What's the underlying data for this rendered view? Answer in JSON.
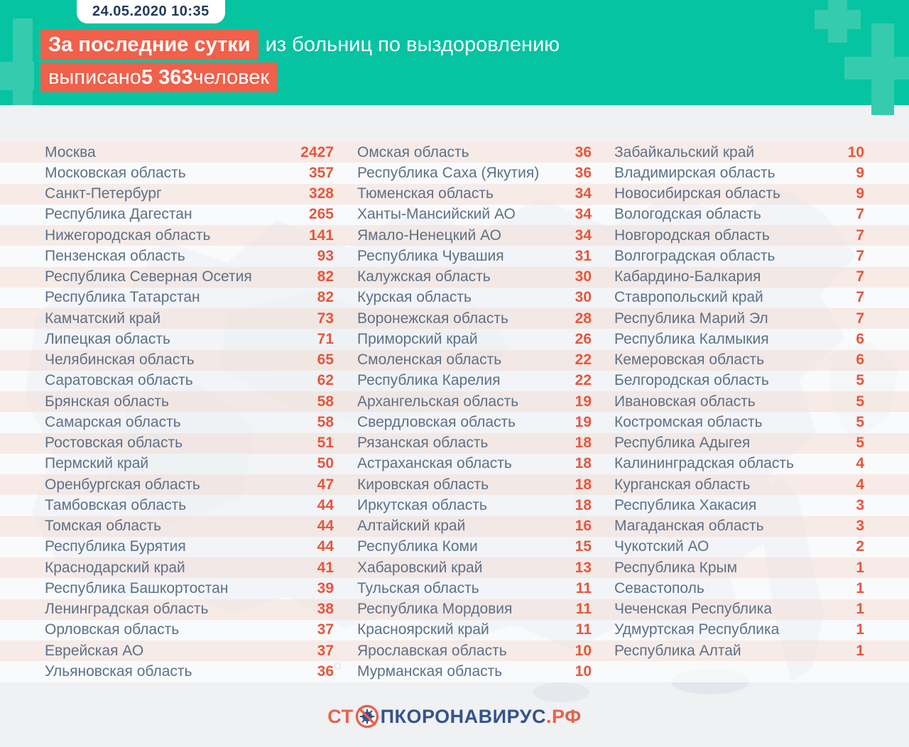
{
  "badge": {
    "timestamp": "24.05.2020 10:35"
  },
  "headline": {
    "line1_highlight": "За последние сутки",
    "line1_rest": "из больниц по выздоровлению",
    "line2_pre": "выписано ",
    "line2_number": "5 363",
    "line2_post": " человек"
  },
  "logo": {
    "part1": "СТ",
    "part2": "ПКОРОНАВИРУС",
    "part3": ".РФ"
  },
  "colors": {
    "teal_band": "#06c3a2",
    "teal_cross": "#35cbae",
    "highlight_orange": "#f1604a",
    "value_orange": "#e5573d",
    "region_gray_blue": "#5d7187",
    "badge_navy": "#24395c",
    "logo_blue": "#35528c",
    "logo_orange": "#e8614b",
    "page_background": "#eff1f3",
    "map_silhouette": "#dbe1e9"
  },
  "chart_data": {
    "type": "table",
    "title": "За последние сутки из больниц по выздоровлению выписано 5 363 человек",
    "timestamp": "24.05.2020 10:35",
    "total_discharged": 5363,
    "columns_meta": [
      "region",
      "discharged_per_day"
    ],
    "row_count": 26,
    "columns": [
      {
        "rows": [
          {
            "region": "Москва",
            "value": 2427
          },
          {
            "region": "Московская область",
            "value": 357
          },
          {
            "region": "Санкт-Петербург",
            "value": 328
          },
          {
            "region": "Республика Дагестан",
            "value": 265
          },
          {
            "region": "Нижегородская область",
            "value": 141
          },
          {
            "region": "Пензенская область",
            "value": 93
          },
          {
            "region": "Республика Северная Осетия",
            "value": 82
          },
          {
            "region": "Республика Татарстан",
            "value": 82
          },
          {
            "region": "Камчатский край",
            "value": 73
          },
          {
            "region": "Липецкая область",
            "value": 71
          },
          {
            "region": "Челябинская область",
            "value": 65
          },
          {
            "region": "Саратовская область",
            "value": 62
          },
          {
            "region": "Брянская область",
            "value": 58
          },
          {
            "region": "Самарская область",
            "value": 58
          },
          {
            "region": "Ростовская область",
            "value": 51
          },
          {
            "region": "Пермский край",
            "value": 50
          },
          {
            "region": "Оренбургская область",
            "value": 47
          },
          {
            "region": "Тамбовская область",
            "value": 44
          },
          {
            "region": "Томская область",
            "value": 44
          },
          {
            "region": "Республика Бурятия",
            "value": 44
          },
          {
            "region": "Краснодарский край",
            "value": 41
          },
          {
            "region": "Республика Башкортостан",
            "value": 39
          },
          {
            "region": "Ленинградская область",
            "value": 38
          },
          {
            "region": "Орловская область",
            "value": 37
          },
          {
            "region": "Еврейская АО",
            "value": 37
          },
          {
            "region": "Ульяновская область",
            "value": 36
          }
        ]
      },
      {
        "rows": [
          {
            "region": "Омская область",
            "value": 36
          },
          {
            "region": "Республика Саха (Якутия)",
            "value": 36
          },
          {
            "region": "Тюменская область",
            "value": 34
          },
          {
            "region": "Ханты-Мансийский АО",
            "value": 34
          },
          {
            "region": "Ямало-Ненецкий АО",
            "value": 34
          },
          {
            "region": "Республика Чувашия",
            "value": 31
          },
          {
            "region": "Калужская область",
            "value": 30
          },
          {
            "region": "Курская область",
            "value": 30
          },
          {
            "region": "Воронежская область",
            "value": 28
          },
          {
            "region": "Приморский край",
            "value": 26
          },
          {
            "region": "Смоленская область",
            "value": 22
          },
          {
            "region": "Республика Карелия",
            "value": 22
          },
          {
            "region": "Архангельская область",
            "value": 19
          },
          {
            "region": "Свердловская область",
            "value": 19
          },
          {
            "region": "Рязанская область",
            "value": 18
          },
          {
            "region": "Астраханская область",
            "value": 18
          },
          {
            "region": "Кировская область",
            "value": 18
          },
          {
            "region": "Иркутская область",
            "value": 18
          },
          {
            "region": "Алтайский край",
            "value": 16
          },
          {
            "region": "Республика Коми",
            "value": 15
          },
          {
            "region": "Хабаровский край",
            "value": 13
          },
          {
            "region": "Тульская область",
            "value": 11
          },
          {
            "region": "Республика Мордовия",
            "value": 11
          },
          {
            "region": "Красноярский край",
            "value": 11
          },
          {
            "region": "Ярославская область",
            "value": 10
          },
          {
            "region": "Мурманская область",
            "value": 10
          }
        ]
      },
      {
        "rows": [
          {
            "region": "Забайкальский край",
            "value": 10
          },
          {
            "region": "Владимирская область",
            "value": 9
          },
          {
            "region": "Новосибирская область",
            "value": 9
          },
          {
            "region": "Вологодская область",
            "value": 7
          },
          {
            "region": "Новгородская область",
            "value": 7
          },
          {
            "region": "Волгоградская область",
            "value": 7
          },
          {
            "region": "Кабардино-Балкария",
            "value": 7
          },
          {
            "region": "Ставропольский край",
            "value": 7
          },
          {
            "region": "Республика Марий Эл",
            "value": 7
          },
          {
            "region": "Республика Калмыкия",
            "value": 6
          },
          {
            "region": "Кемеровская область",
            "value": 6
          },
          {
            "region": "Белгородская область",
            "value": 5
          },
          {
            "region": "Ивановская область",
            "value": 5
          },
          {
            "region": "Костромская область",
            "value": 5
          },
          {
            "region": "Республика Адыгея",
            "value": 5
          },
          {
            "region": "Калининградская область",
            "value": 4
          },
          {
            "region": "Курганская область",
            "value": 4
          },
          {
            "region": "Республика Хакасия",
            "value": 3
          },
          {
            "region": "Магаданская область",
            "value": 3
          },
          {
            "region": "Чукотский АО",
            "value": 2
          },
          {
            "region": "Республика Крым",
            "value": 1
          },
          {
            "region": "Севастополь",
            "value": 1
          },
          {
            "region": "Чеченская Республика",
            "value": 1
          },
          {
            "region": "Удмуртская Республика",
            "value": 1
          },
          {
            "region": "Республика Алтай",
            "value": 1
          }
        ]
      }
    ]
  }
}
